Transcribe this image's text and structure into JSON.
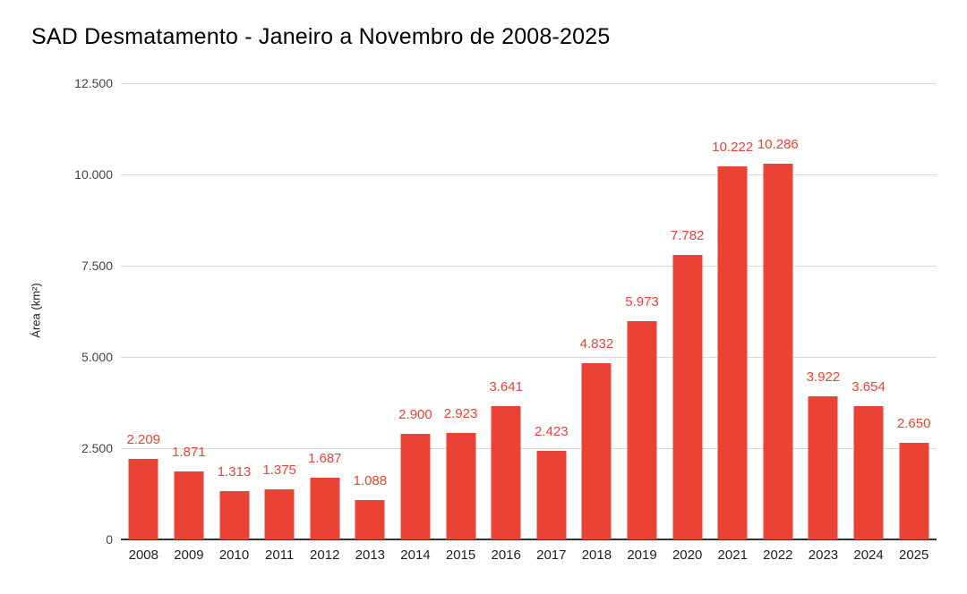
{
  "title": "SAD Desmatamento - Janeiro a Novembro de 2008-2025",
  "chart_data": {
    "type": "bar",
    "title": "SAD Desmatamento - Janeiro a Novembro de 2008-2025",
    "xlabel": "",
    "ylabel": "Área (km²)",
    "categories": [
      "2008",
      "2009",
      "2010",
      "2011",
      "2012",
      "2013",
      "2014",
      "2015",
      "2016",
      "2017",
      "2018",
      "2019",
      "2020",
      "2021",
      "2022",
      "2023",
      "2024",
      "2025"
    ],
    "values": [
      2209,
      1871,
      1313,
      1375,
      1687,
      1088,
      2900,
      2923,
      3641,
      2423,
      4832,
      5973,
      7782,
      10222,
      10286,
      3922,
      3654,
      2650
    ],
    "value_labels": [
      "2.209",
      "1.871",
      "1.313",
      "1.375",
      "1.687",
      "1.088",
      "2.900",
      "2.923",
      "3.641",
      "2.423",
      "4.832",
      "5.973",
      "7.782",
      "10.222",
      "10.286",
      "3.922",
      "3.654",
      "2.650"
    ],
    "ylim": [
      0,
      12500
    ],
    "ytick_values": [
      0,
      2500,
      5000,
      7500,
      10000,
      12500
    ],
    "ytick_labels": [
      "0",
      "2.500",
      "5.000",
      "7.500",
      "10.000",
      "12.500"
    ],
    "grid": true,
    "legend": "none",
    "series_name": "Área (km²)"
  },
  "colors": {
    "bar": "#EA4335",
    "value_label": "#EA4335",
    "gridline": "#D9D9D9",
    "axis_line": "#333333",
    "title_text": "#000000",
    "ytick_text": "#444444",
    "xtick_text": "#222222",
    "background": "#FFFFFF"
  }
}
